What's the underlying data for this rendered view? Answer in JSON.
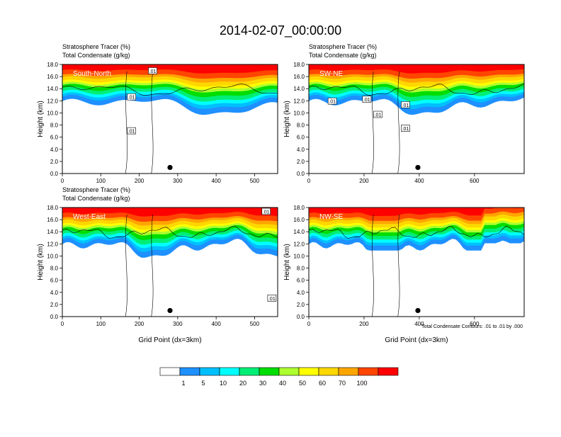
{
  "title": "2014-02-07_00:00:00",
  "footnote": "Total Condensate Contours: .01 to .01 by .000",
  "colorbar": {
    "colors": [
      "#ffffff",
      "#1e90ff",
      "#00bfff",
      "#00ffff",
      "#00ee76",
      "#00dd00",
      "#adff2f",
      "#ffff00",
      "#ffd700",
      "#ffa500",
      "#ff4500",
      "#ff0000"
    ],
    "labels": [
      "1",
      "5",
      "10",
      "20",
      "30",
      "40",
      "50",
      "60",
      "70",
      "100"
    ]
  },
  "chart_data": [
    {
      "type": "heatmap",
      "header1": "Stratosphere Tracer   (%)",
      "header2": "Total Condensate   (g/kg)",
      "section": "South-North",
      "ylabel": "Height (km)",
      "xlabel": "",
      "xlim": [
        0,
        560
      ],
      "ylim": [
        0,
        18
      ],
      "xticks": [
        0,
        100,
        200,
        300,
        400,
        500
      ],
      "yticks": [
        "0.0",
        "2.0",
        "4.0",
        "6.0",
        "8.0",
        "10.0",
        "12.0",
        "14.0",
        "16.0",
        "18.0"
      ],
      "marker": [
        280,
        1.0
      ],
      "contour_labels": [
        {
          "text": ".01",
          "x": 235,
          "y": 16.9
        },
        {
          "text": ".01",
          "x": 180,
          "y": 12.6
        },
        {
          "text": ".01",
          "x": 180,
          "y": 7.0
        }
      ]
    },
    {
      "type": "heatmap",
      "header1": "Stratosphere Tracer   (%)",
      "header2": "Total Condensate   (g/kg)",
      "section": "SW-NE",
      "ylabel": "Height (km)",
      "xlabel": "",
      "xlim": [
        0,
        780
      ],
      "ylim": [
        0,
        18
      ],
      "xticks": [
        0,
        200,
        400,
        600
      ],
      "yticks": [
        "0.0",
        "2.0",
        "4.0",
        "6.0",
        "8.0",
        "10.0",
        "12.0",
        "14.0",
        "16.0",
        "18.0"
      ],
      "marker": [
        395,
        1.0
      ],
      "contour_labels": [
        {
          "text": ".01",
          "x": 85,
          "y": 11.9
        },
        {
          "text": ".01",
          "x": 210,
          "y": 12.2
        },
        {
          "text": ".01",
          "x": 250,
          "y": 9.7
        },
        {
          "text": ".01",
          "x": 350,
          "y": 11.3
        },
        {
          "text": ".01",
          "x": 350,
          "y": 7.4
        }
      ]
    },
    {
      "type": "heatmap",
      "header1": "Stratosphere Tracer   (%)",
      "header2": "Total Condensate   (g/kg)",
      "section": "West-East",
      "ylabel": "Height (km)",
      "xlabel": "Grid Point (dx=3km)",
      "xlim": [
        0,
        560
      ],
      "ylim": [
        0,
        18
      ],
      "xticks": [
        0,
        100,
        200,
        300,
        400,
        500
      ],
      "yticks": [
        "0.0",
        "2.0",
        "4.0",
        "6.0",
        "8.0",
        "10.0",
        "12.0",
        "14.0",
        "16.0",
        "18.0"
      ],
      "marker": [
        280,
        1.0
      ],
      "contour_labels": [
        {
          "text": ".01",
          "x": 530,
          "y": 17.3
        },
        {
          "text": ".01",
          "x": 545,
          "y": 3.0
        }
      ]
    },
    {
      "type": "heatmap",
      "header1": "",
      "header2": "",
      "section": "NW-SE",
      "ylabel": "Height (km)",
      "xlabel": "Grid Point (dx=3km)",
      "xlim": [
        0,
        780
      ],
      "ylim": [
        0,
        18
      ],
      "xticks": [
        0,
        200,
        400,
        600
      ],
      "yticks": [
        "0.0",
        "2.0",
        "4.0",
        "6.0",
        "8.0",
        "10.0",
        "12.0",
        "14.0",
        "16.0",
        "18.0"
      ],
      "marker": [
        395,
        1.0
      ],
      "contour_labels": []
    }
  ]
}
